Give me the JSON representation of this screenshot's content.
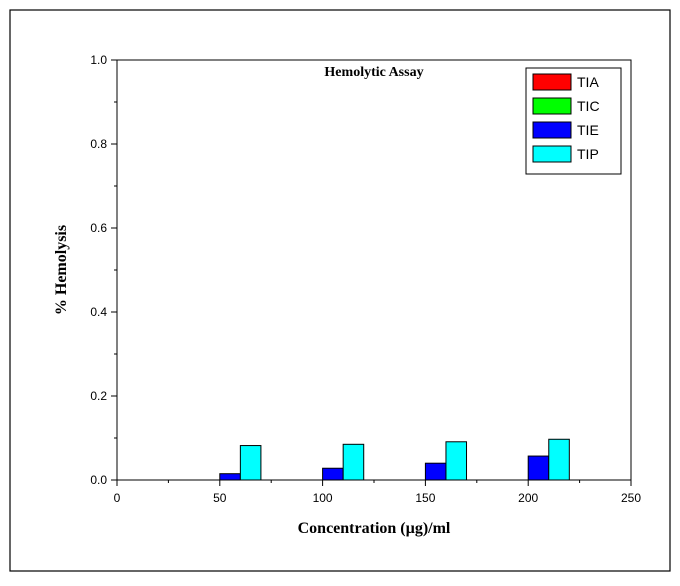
{
  "chart_data": {
    "type": "bar",
    "title": "Hemolytic Assay",
    "xlabel": "Concentration (µg)/ml",
    "ylabel": "% Hemolysis",
    "xlim": [
      0,
      250
    ],
    "ylim": [
      0,
      1.0
    ],
    "x_ticks": [
      "0",
      "50",
      "100",
      "150",
      "200",
      "250"
    ],
    "y_ticks": [
      "0.0",
      "0.2",
      "0.4",
      "0.6",
      "0.8",
      "1.0"
    ],
    "categories": [
      50,
      100,
      150,
      200
    ],
    "grid": false,
    "legend_position": "top-right",
    "series": [
      {
        "name": "TIA",
        "color": "#ff0000",
        "values": [
          0,
          0,
          0,
          0
        ]
      },
      {
        "name": "TIC",
        "color": "#00ff00",
        "values": [
          0,
          0,
          0,
          0
        ]
      },
      {
        "name": "TIE",
        "color": "#0000ff",
        "values": [
          0.015,
          0.028,
          0.04,
          0.057
        ]
      },
      {
        "name": "TIP",
        "color": "#00ffff",
        "values": [
          0.082,
          0.085,
          0.091,
          0.097
        ]
      }
    ]
  }
}
